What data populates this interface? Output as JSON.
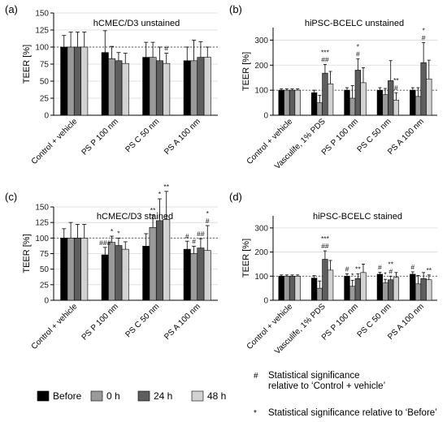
{
  "colors": {
    "before": "#000000",
    "h0": "#9a9a9a",
    "h24": "#5e5e5e",
    "h48": "#d2d2d2"
  },
  "legend": {
    "items": [
      {
        "label": "Before",
        "color": "#000000"
      },
      {
        "label": "0 h",
        "color": "#9a9a9a"
      },
      {
        "label": "24 h",
        "color": "#5e5e5e"
      },
      {
        "label": "48 h",
        "color": "#d2d2d2"
      }
    ],
    "notes": [
      {
        "symbol": "#",
        "text": "Statistical significance relative to ‘Control + vehicle’"
      },
      {
        "symbol": "*",
        "text": "Statistical significance relative to ‘Before’"
      }
    ]
  },
  "chart_data": [
    {
      "panel": "(a)",
      "type": "bar",
      "title": "hCMEC/D3 unstained",
      "ylabel": "TEER [%]",
      "ylim": [
        0,
        150
      ],
      "yticks": [
        0,
        25,
        50,
        75,
        100,
        125,
        150
      ],
      "reference_line": 100,
      "categories": [
        "Control + vehicle",
        "PS P 100 nm",
        "PS C 50 nm",
        "PS A 100 nm"
      ],
      "series": [
        {
          "name": "Before",
          "values": [
            100,
            92,
            85,
            80
          ],
          "errors": [
            17,
            32,
            22,
            20
          ]
        },
        {
          "name": "0 h",
          "values": [
            100,
            83,
            85,
            80
          ],
          "errors": [
            22,
            18,
            22,
            30
          ]
        },
        {
          "name": "24 h",
          "values": [
            100,
            80,
            80,
            85
          ],
          "errors": [
            22,
            12,
            20,
            23
          ]
        },
        {
          "name": "48 h",
          "values": [
            100,
            76,
            76,
            85
          ],
          "errors": [
            22,
            15,
            15,
            15
          ]
        }
      ],
      "annotations": [
        {
          "category": 2,
          "series": 3,
          "text": "#"
        }
      ]
    },
    {
      "panel": "(b)",
      "type": "bar",
      "title": "hiPSC-BCELC unstained",
      "ylabel": "TEER [%]",
      "ylim": [
        0,
        350
      ],
      "yticks": [
        0,
        100,
        200,
        300
      ],
      "reference_line": 100,
      "categories": [
        "Control + vehicle",
        "Vasculife, 1% PDS",
        "PS P 100 nm",
        "PS C 50 nm",
        "PS A 100 nm"
      ],
      "series": [
        {
          "name": "Before",
          "values": [
            100,
            90,
            100,
            100,
            100
          ],
          "errors": [
            5,
            10,
            10,
            10,
            10
          ]
        },
        {
          "name": "0 h",
          "values": [
            100,
            50,
            68,
            82,
            75
          ],
          "errors": [
            5,
            30,
            50,
            25,
            35
          ]
        },
        {
          "name": "24 h",
          "values": [
            100,
            168,
            180,
            138,
            210
          ],
          "errors": [
            5,
            35,
            45,
            80,
            80
          ]
        },
        {
          "name": "48 h",
          "values": [
            100,
            125,
            130,
            60,
            145
          ],
          "errors": [
            5,
            50,
            60,
            30,
            75
          ]
        }
      ],
      "annotations": [
        {
          "category": 1,
          "series": 2,
          "text": "##"
        },
        {
          "category": 1,
          "series": 2,
          "text": "***"
        },
        {
          "category": 2,
          "series": 2,
          "text": "#"
        },
        {
          "category": 2,
          "series": 2,
          "text": "*"
        },
        {
          "category": 3,
          "series": 3,
          "text": "#"
        },
        {
          "category": 3,
          "series": 3,
          "text": "**"
        },
        {
          "category": 4,
          "series": 2,
          "text": "#"
        },
        {
          "category": 4,
          "series": 2,
          "text": "*"
        }
      ]
    },
    {
      "panel": "(c)",
      "type": "bar",
      "title": "hCMEC/D3 stained",
      "ylabel": "TEER [%]",
      "ylim": [
        0,
        150
      ],
      "yticks": [
        0,
        25,
        50,
        75,
        100,
        125,
        150
      ],
      "reference_line": 100,
      "categories": [
        "Control + vehicle",
        "PS P 100 nm",
        "PS C 50 nm",
        "PS A 100 nm"
      ],
      "series": [
        {
          "name": "Before",
          "values": [
            100,
            73,
            87,
            82
          ],
          "errors": [
            15,
            12,
            20,
            13
          ]
        },
        {
          "name": "0 h",
          "values": [
            100,
            93,
            117,
            75
          ],
          "errors": [
            25,
            10,
            20,
            12
          ]
        },
        {
          "name": "24 h",
          "values": [
            100,
            88,
            128,
            84
          ],
          "errors": [
            22,
            12,
            35,
            15
          ]
        },
        {
          "name": "48 h",
          "values": [
            100,
            82,
            130,
            80
          ],
          "errors": [
            22,
            12,
            45,
            40
          ]
        }
      ],
      "annotations": [
        {
          "category": 1,
          "series": 0,
          "text": "###"
        },
        {
          "category": 1,
          "series": 1,
          "text": "*"
        },
        {
          "category": 1,
          "series": 2,
          "text": "*"
        },
        {
          "category": 2,
          "series": 1,
          "text": "**"
        },
        {
          "category": 2,
          "series": 2,
          "text": "*"
        },
        {
          "category": 2,
          "series": 3,
          "text": "**"
        },
        {
          "category": 3,
          "series": 0,
          "text": "#"
        },
        {
          "category": 3,
          "series": 1,
          "text": "#"
        },
        {
          "category": 3,
          "series": 2,
          "text": "##"
        },
        {
          "category": 3,
          "series": 3,
          "text": "#"
        },
        {
          "category": 3,
          "series": 3,
          "text": "*"
        }
      ]
    },
    {
      "panel": "(d)",
      "type": "bar",
      "title": "hiPSC-BCELC stained",
      "ylabel": "TEER [%]",
      "ylim": [
        0,
        350
      ],
      "yticks": [
        0,
        100,
        200,
        300
      ],
      "reference_line": 100,
      "categories": [
        "Control + vehicle",
        "Vasculife, 1% PDS",
        "PS P 100 nm",
        "PS C 50 nm",
        "PS A 100 nm"
      ],
      "series": [
        {
          "name": "Before",
          "values": [
            100,
            92,
            100,
            108,
            108
          ],
          "errors": [
            5,
            10,
            10,
            8,
            10
          ]
        },
        {
          "name": "0 h",
          "values": [
            100,
            50,
            58,
            72,
            68
          ],
          "errors": [
            5,
            30,
            25,
            15,
            35
          ]
        },
        {
          "name": "24 h",
          "values": [
            100,
            170,
            90,
            85,
            90
          ],
          "errors": [
            5,
            35,
            20,
            15,
            25
          ]
        },
        {
          "name": "48 h",
          "values": [
            100,
            125,
            115,
            95,
            85
          ],
          "errors": [
            5,
            40,
            35,
            20,
            20
          ]
        }
      ],
      "annotations": [
        {
          "category": 1,
          "series": 2,
          "text": "##"
        },
        {
          "category": 1,
          "series": 2,
          "text": "***"
        },
        {
          "category": 2,
          "series": 0,
          "text": "#"
        },
        {
          "category": 2,
          "series": 1,
          "text": "*"
        },
        {
          "category": 2,
          "series": 2,
          "text": "**"
        },
        {
          "category": 3,
          "series": 0,
          "text": "#"
        },
        {
          "category": 3,
          "series": 1,
          "text": "*"
        },
        {
          "category": 3,
          "series": 2,
          "text": "#"
        },
        {
          "category": 3,
          "series": 2,
          "text": "**"
        },
        {
          "category": 4,
          "series": 0,
          "text": "#"
        },
        {
          "category": 4,
          "series": 3,
          "text": "**"
        }
      ]
    }
  ]
}
